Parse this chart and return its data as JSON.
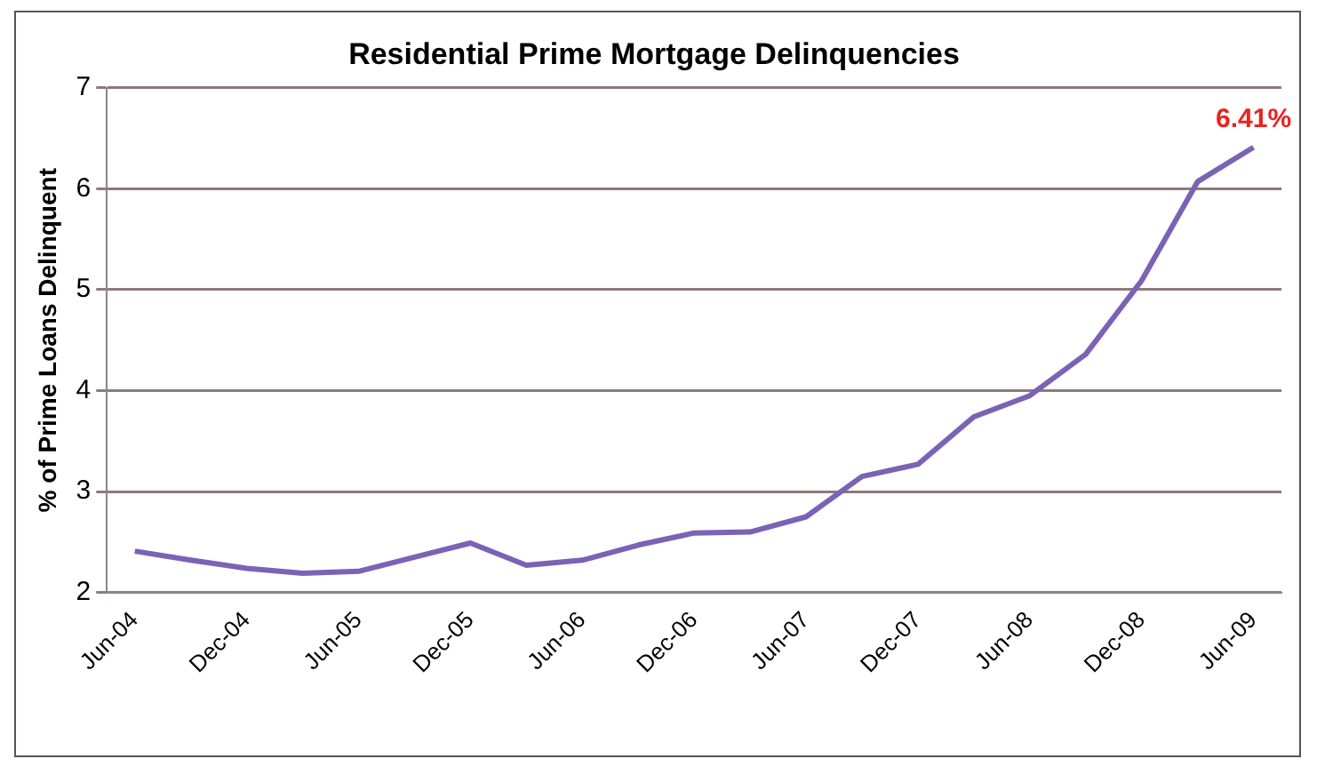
{
  "chart_data": {
    "type": "line",
    "title": "Residential Prime Mortgage Delinquencies",
    "ylabel": "% of Prime Loans Delinquent",
    "categories": [
      "Jun-04",
      null,
      "Dec-04",
      null,
      "Jun-05",
      null,
      "Dec-05",
      null,
      "Jun-06",
      null,
      "Dec-06",
      null,
      "Jun-07",
      null,
      "Dec-07",
      null,
      "Jun-08",
      null,
      "Dec-08",
      null,
      "Jun-09"
    ],
    "series": [
      {
        "color": "#7b62b5",
        "values": [
          2.41,
          2.32,
          2.24,
          2.19,
          2.21,
          2.35,
          2.49,
          2.27,
          2.32,
          2.47,
          2.59,
          2.6,
          2.75,
          3.15,
          3.27,
          3.74,
          3.95,
          4.36,
          5.09,
          6.07,
          6.41
        ]
      }
    ],
    "ylim": [
      2,
      7
    ],
    "yticks": [
      2,
      3,
      4,
      5,
      6,
      7
    ],
    "grid": "y",
    "legend": false,
    "marker": "none",
    "line_style": "solid",
    "annotations": [
      {
        "text": "6.41%",
        "x": "Jun-09",
        "y": 6.41
      }
    ]
  }
}
